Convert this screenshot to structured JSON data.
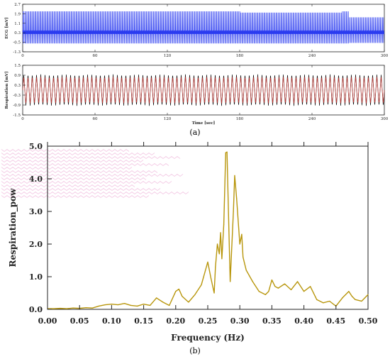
{
  "colors": {
    "ecg_line": "#2a3bf0",
    "resp_line": "#111111",
    "resp_fit": "#e0302a",
    "spectrum_line": "#b8960c",
    "axis": "#222222",
    "artifact": "#f3c8e3"
  },
  "panel_a_label": "(a)",
  "panel_b_label": "(b)",
  "chart_data": [
    {
      "type": "line",
      "ylabel": "ECG [mV]",
      "xlabel": "",
      "xlim": [
        0,
        300
      ],
      "ylim": [
        -1.3,
        2.7
      ],
      "x_ticks": [
        0,
        60,
        120,
        180,
        240,
        300
      ],
      "y_ticks": [
        "2.7",
        "1.9",
        "1.1",
        "0.3",
        "-0.5",
        "-1.3"
      ],
      "y_tick_values": [
        2.7,
        1.9,
        1.1,
        0.3,
        -0.5,
        -1.3
      ],
      "series": [
        {
          "beats_approx": 360,
          "baseline": 0.3,
          "peak": 2.1,
          "trough": -0.6
        }
      ]
    },
    {
      "type": "line",
      "ylabel": "Respiration [mV]",
      "xlabel": "Time [sec]",
      "xlim": [
        0,
        300
      ],
      "ylim": [
        -1.5,
        1.5
      ],
      "x_ticks": [
        0,
        60,
        120,
        180,
        240,
        300
      ],
      "y_ticks": [
        "1.5",
        "0.9",
        "0.3",
        "-0.3",
        "-0.9",
        "-1.5"
      ],
      "y_tick_values": [
        1.5,
        0.9,
        0.3,
        -0.3,
        -0.9,
        -1.5
      ],
      "series": [
        {
          "cycles_approx": 85,
          "amplitude": 1.0
        }
      ]
    },
    {
      "type": "line",
      "ylabel": "Respiration_pow",
      "xlabel": "Frequency (Hz)",
      "xlim": [
        0,
        0.5
      ],
      "ylim": [
        0,
        5
      ],
      "x_ticks": [
        "0.00",
        "0.05",
        "0.10",
        "0.15",
        "0.20",
        "0.25",
        "0.30",
        "0.35",
        "0.40",
        "0.45",
        "0.50"
      ],
      "x_tick_values": [
        0,
        0.05,
        0.1,
        0.15,
        0.2,
        0.25,
        0.3,
        0.35,
        0.4,
        0.45,
        0.5
      ],
      "y_ticks": [
        "0.0",
        "1.0",
        "2.0",
        "3.0",
        "4.0",
        "5.0"
      ],
      "y_tick_values": [
        0,
        1,
        2,
        3,
        4,
        5
      ],
      "x": [
        0.0,
        0.01,
        0.02,
        0.03,
        0.04,
        0.05,
        0.06,
        0.07,
        0.08,
        0.09,
        0.1,
        0.11,
        0.12,
        0.13,
        0.14,
        0.15,
        0.16,
        0.17,
        0.18,
        0.19,
        0.2,
        0.205,
        0.21,
        0.22,
        0.23,
        0.24,
        0.25,
        0.255,
        0.26,
        0.262,
        0.265,
        0.268,
        0.27,
        0.272,
        0.275,
        0.278,
        0.28,
        0.283,
        0.285,
        0.29,
        0.292,
        0.295,
        0.3,
        0.303,
        0.305,
        0.31,
        0.32,
        0.33,
        0.34,
        0.345,
        0.35,
        0.355,
        0.36,
        0.37,
        0.38,
        0.39,
        0.4,
        0.41,
        0.42,
        0.43,
        0.44,
        0.45,
        0.46,
        0.47,
        0.475,
        0.48,
        0.49,
        0.5
      ],
      "values": [
        0.02,
        0.02,
        0.03,
        0.02,
        0.04,
        0.03,
        0.05,
        0.04,
        0.1,
        0.14,
        0.16,
        0.14,
        0.18,
        0.12,
        0.1,
        0.16,
        0.12,
        0.35,
        0.22,
        0.12,
        0.55,
        0.62,
        0.4,
        0.22,
        0.45,
        0.75,
        1.45,
        0.95,
        0.5,
        1.3,
        2.0,
        1.7,
        2.35,
        1.55,
        2.6,
        4.8,
        4.82,
        2.4,
        0.85,
        3.0,
        4.1,
        3.4,
        2.0,
        2.3,
        1.6,
        1.2,
        0.85,
        0.55,
        0.45,
        0.55,
        0.9,
        0.7,
        0.65,
        0.78,
        0.6,
        0.85,
        0.55,
        0.7,
        0.3,
        0.2,
        0.25,
        0.1,
        0.35,
        0.55,
        0.4,
        0.3,
        0.25,
        0.45
      ]
    }
  ]
}
